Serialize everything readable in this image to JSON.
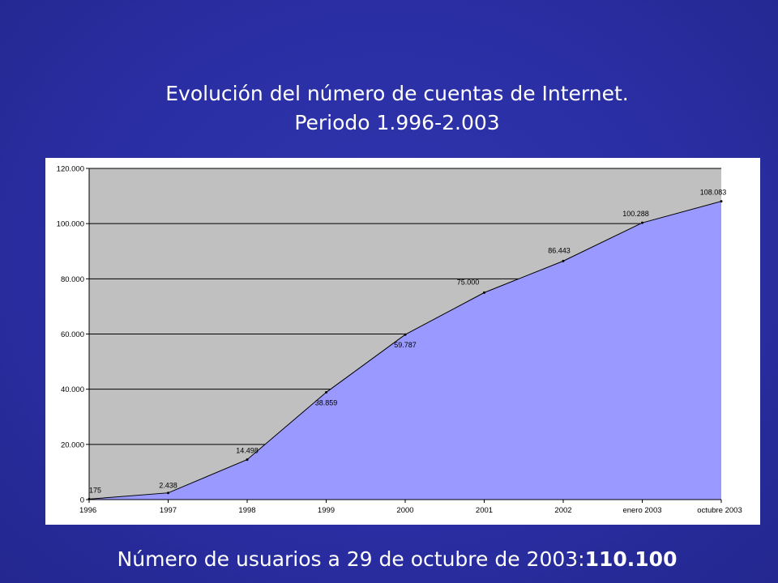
{
  "slide": {
    "title_line1": "Evolución del número de cuentas de Internet.",
    "title_line2": "Periodo 1.996-2.003",
    "footer_text": "Número de usuarios a 29 de octubre de 2003:",
    "footer_value": "110.100"
  },
  "chart_data": {
    "type": "area",
    "title": "",
    "xlabel": "",
    "ylabel": "",
    "categories": [
      "1996",
      "1997",
      "1998",
      "1999",
      "2000",
      "2001",
      "2002",
      "enero 2003",
      "octubre 2003"
    ],
    "values": [
      175,
      2438,
      14498,
      38859,
      59787,
      75000,
      86443,
      100288,
      108083
    ],
    "data_labels": [
      "175",
      "2.438",
      "14.498",
      "38.859",
      "59.787",
      "75.000",
      "86.443",
      "100.288",
      "108.083"
    ],
    "ylim": [
      0,
      120000
    ],
    "yticks": [
      0,
      20000,
      40000,
      60000,
      80000,
      100000,
      120000
    ],
    "ytick_labels": [
      "0",
      "20.000",
      "40.000",
      "60.000",
      "80.000",
      "100.000",
      "120.000"
    ],
    "grid": true,
    "colors": {
      "area_fill": "#9999ff",
      "plot_background": "#c0c0c0",
      "line": "#000000",
      "gridline": "#000000",
      "slide_background": "#2a2ea3"
    }
  }
}
